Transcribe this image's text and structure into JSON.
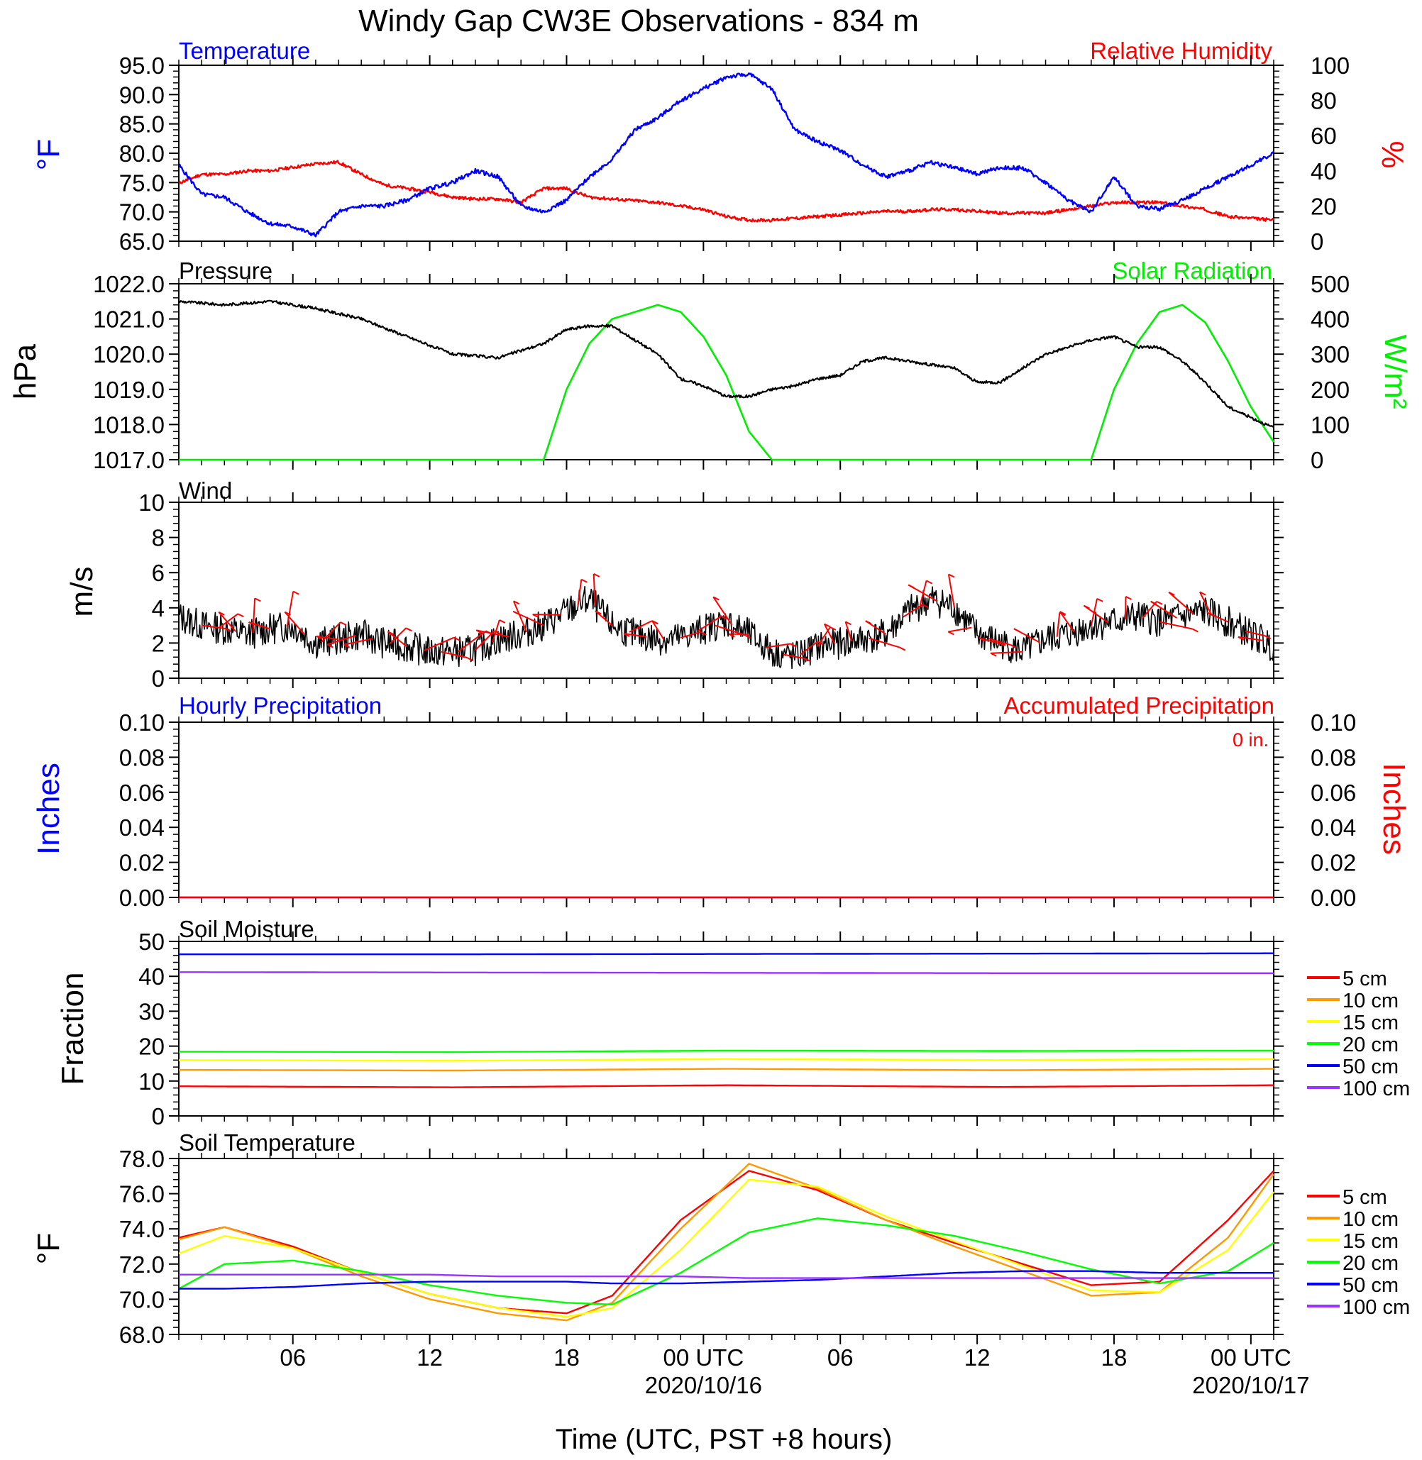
{
  "title": "Windy Gap CW3E Observations - 834 m",
  "x_axis": {
    "label": "Time (UTC, PST +8 hours)",
    "ticks": [
      {
        "hour": 6,
        "label": "06",
        "date": ""
      },
      {
        "hour": 12,
        "label": "12",
        "date": ""
      },
      {
        "hour": 18,
        "label": "18",
        "date": ""
      },
      {
        "hour": 24,
        "label": "00 UTC",
        "date": "2020/10/16"
      },
      {
        "hour": 30,
        "label": "06",
        "date": ""
      },
      {
        "hour": 36,
        "label": "12",
        "date": ""
      },
      {
        "hour": 42,
        "label": "18",
        "date": ""
      },
      {
        "hour": 48,
        "label": "00 UTC",
        "date": "2020/10/17"
      }
    ],
    "range_hours": [
      1,
      49
    ]
  },
  "colors": {
    "temperature": "#0000ff",
    "humidity": "#ff0000",
    "pressure": "#000000",
    "solar": "#00ee00",
    "wind": "#000000",
    "barbs": "#ff0000",
    "d5": "#ff0000",
    "d10": "#ff9900",
    "d15": "#ffff00",
    "d20": "#00ff00",
    "d50": "#0000ff",
    "d100": "#9933ff"
  },
  "panels": {
    "temp": {
      "left_title": "Temperature",
      "right_title": "Relative Humidity",
      "left_unit": "°F",
      "right_unit": "%",
      "left_ticks": [
        "65.0",
        "70.0",
        "75.0",
        "80.0",
        "85.0",
        "90.0",
        "95.0"
      ],
      "right_ticks": [
        "0",
        "20",
        "40",
        "60",
        "80",
        "100"
      ]
    },
    "pressure": {
      "left_title": "Pressure",
      "right_title": "Solar Radiation",
      "left_unit": "hPa",
      "right_unit": "W/m²",
      "left_ticks": [
        "1017.0",
        "1018.0",
        "1019.0",
        "1020.0",
        "1021.0",
        "1022.0"
      ],
      "right_ticks": [
        "0",
        "100",
        "200",
        "300",
        "400",
        "500"
      ]
    },
    "wind": {
      "left_title": "Wind",
      "left_unit": "m/s",
      "left_ticks": [
        "0",
        "2",
        "4",
        "6",
        "8",
        "10"
      ]
    },
    "precip": {
      "left_title": "Hourly Precipitation",
      "right_title": "Accumulated Precipitation",
      "total": "0 in.",
      "left_unit": "Inches",
      "right_unit": "Inches",
      "left_ticks": [
        "0.00",
        "0.02",
        "0.04",
        "0.06",
        "0.08",
        "0.10"
      ],
      "right_ticks": [
        "0.00",
        "0.02",
        "0.04",
        "0.06",
        "0.08",
        "0.10"
      ]
    },
    "soil_moisture": {
      "left_title": "Soil Moisture",
      "left_unit": "Fraction",
      "left_ticks": [
        "0",
        "10",
        "20",
        "30",
        "40",
        "50"
      ],
      "legend": [
        "5 cm",
        "10 cm",
        "15 cm",
        "20 cm",
        "50 cm",
        "100 cm"
      ]
    },
    "soil_temp": {
      "left_title": "Soil Temperature",
      "left_unit": "°F",
      "left_ticks": [
        "68.0",
        "70.0",
        "72.0",
        "74.0",
        "76.0",
        "78.0"
      ],
      "legend": [
        "5 cm",
        "10 cm",
        "15 cm",
        "20 cm",
        "50 cm",
        "100 cm"
      ]
    }
  },
  "chart_data": [
    {
      "type": "line",
      "title": "Temperature / Relative Humidity",
      "xlabel": "Time (UTC)",
      "ylabel": "°F",
      "ylim": [
        65,
        95
      ],
      "y2label": "%",
      "y2lim": [
        0,
        100
      ],
      "x_hours": [
        1,
        2,
        3,
        4,
        5,
        6,
        7,
        8,
        9,
        10,
        11,
        12,
        13,
        14,
        15,
        16,
        17,
        18,
        19,
        20,
        21,
        22,
        23,
        24,
        25,
        26,
        27,
        28,
        29,
        30,
        31,
        32,
        33,
        34,
        35,
        36,
        37,
        38,
        39,
        40,
        41,
        42,
        43,
        44,
        45,
        46,
        47,
        48,
        49
      ],
      "series": [
        {
          "name": "Temperature",
          "axis": "left",
          "color_key": "temperature",
          "values": [
            78,
            73,
            72.5,
            70,
            68,
            67.5,
            66,
            70,
            71,
            71,
            72,
            74,
            75,
            77,
            76,
            71,
            70,
            72,
            76,
            79,
            84,
            86,
            89,
            91,
            93,
            93.5,
            91,
            84,
            82,
            80.5,
            78,
            76,
            77,
            78.5,
            77.5,
            76.5,
            77.5,
            77.5,
            75,
            72,
            70,
            76,
            71,
            70.5,
            72,
            74,
            76,
            78,
            80
          ]
        },
        {
          "name": "Relative Humidity",
          "axis": "right",
          "color_key": "humidity",
          "values": [
            33,
            38,
            38,
            40,
            40,
            42,
            44,
            45,
            38,
            32,
            30,
            28,
            25,
            24,
            24,
            22,
            30,
            30,
            25,
            24,
            23,
            22,
            20,
            18,
            14,
            12,
            12,
            13,
            14,
            15,
            16,
            17,
            17,
            18,
            18,
            17,
            16,
            16,
            16,
            18,
            20,
            22,
            22,
            22,
            20,
            18,
            14,
            13,
            12
          ]
        }
      ]
    },
    {
      "type": "line",
      "title": "Pressure / Solar Radiation",
      "xlabel": "Time (UTC)",
      "ylabel": "hPa",
      "ylim": [
        1017,
        1022
      ],
      "y2label": "W/m²",
      "y2lim": [
        0,
        500
      ],
      "x_hours": [
        1,
        3,
        5,
        7,
        9,
        11,
        13,
        15,
        17,
        18,
        19,
        20,
        22,
        23,
        24,
        25,
        26,
        27,
        28,
        29,
        30,
        31,
        32,
        33,
        35,
        36,
        37,
        38,
        39,
        40,
        41,
        42,
        43,
        44,
        45,
        46,
        47,
        48,
        49
      ],
      "series": [
        {
          "name": "Pressure",
          "axis": "left",
          "color_key": "pressure",
          "values": [
            1021.5,
            1021.4,
            1021.5,
            1021.3,
            1021.0,
            1020.5,
            1020.0,
            1019.9,
            1020.3,
            1020.7,
            1020.8,
            1020.8,
            1020.0,
            1019.3,
            1019.1,
            1018.8,
            1018.8,
            1019.0,
            1019.1,
            1019.3,
            1019.4,
            1019.8,
            1019.9,
            1019.8,
            1019.6,
            1019.2,
            1019.2,
            1019.6,
            1020.0,
            1020.2,
            1020.4,
            1020.5,
            1020.2,
            1020.2,
            1019.8,
            1019.2,
            1018.5,
            1018.2,
            1017.9
          ]
        },
        {
          "name": "Solar Radiation",
          "axis": "right",
          "color_key": "solar",
          "values": [
            0,
            0,
            0,
            0,
            0,
            0,
            0,
            0,
            0,
            200,
            330,
            400,
            440,
            420,
            350,
            240,
            80,
            0,
            0,
            0,
            0,
            0,
            0,
            0,
            0,
            0,
            0,
            0,
            0,
            0,
            0,
            200,
            330,
            420,
            440,
            390,
            280,
            150,
            50
          ]
        }
      ]
    },
    {
      "type": "line",
      "title": "Wind",
      "xlabel": "Time (UTC)",
      "ylabel": "m/s",
      "ylim": [
        0,
        10
      ],
      "x_hours": [
        1,
        2,
        3,
        4,
        5,
        6,
        7,
        8,
        9,
        10,
        11,
        12,
        13,
        14,
        15,
        16,
        17,
        18,
        19,
        20,
        21,
        22,
        23,
        24,
        25,
        26,
        27,
        28,
        29,
        30,
        31,
        32,
        33,
        34,
        35,
        36,
        37,
        38,
        39,
        40,
        41,
        42,
        43,
        44,
        45,
        46,
        47,
        48,
        49
      ],
      "series": [
        {
          "name": "Wind speed",
          "color_key": "wind",
          "values": [
            3.5,
            3.0,
            2.8,
            2.5,
            2.8,
            3.0,
            2.0,
            2.2,
            2.5,
            2.0,
            1.8,
            1.5,
            1.5,
            1.6,
            2.2,
            2.5,
            3.0,
            3.8,
            4.5,
            3.0,
            2.5,
            2.2,
            2.3,
            2.8,
            3.2,
            2.5,
            1.5,
            1.2,
            1.8,
            2.0,
            2.2,
            2.5,
            3.8,
            4.5,
            4.0,
            2.5,
            2.0,
            1.5,
            2.2,
            2.5,
            3.0,
            3.2,
            3.5,
            3.2,
            3.5,
            3.8,
            3.2,
            2.5,
            1.8
          ]
        }
      ]
    },
    {
      "type": "line",
      "title": "Hourly / Accumulated Precipitation",
      "xlabel": "Time (UTC)",
      "ylabel": "Inches",
      "ylim": [
        0,
        0.1
      ],
      "x_hours": [
        1,
        49
      ],
      "series": [
        {
          "name": "Hourly Precipitation",
          "color_key": "temperature",
          "values": [
            0,
            0
          ]
        },
        {
          "name": "Accumulated Precipitation",
          "color_key": "humidity",
          "values": [
            0,
            0
          ]
        }
      ]
    },
    {
      "type": "line",
      "title": "Soil Moisture",
      "xlabel": "Time (UTC)",
      "ylabel": "Fraction",
      "ylim": [
        0,
        50
      ],
      "x_hours": [
        1,
        13,
        25,
        37,
        49
      ],
      "series": [
        {
          "name": "5 cm",
          "color_key": "d5",
          "values": [
            8.5,
            8.2,
            8.8,
            8.3,
            8.8
          ]
        },
        {
          "name": "10 cm",
          "color_key": "d10",
          "values": [
            13.2,
            13.0,
            13.5,
            13.1,
            13.5
          ]
        },
        {
          "name": "15 cm",
          "color_key": "d15",
          "values": [
            16.0,
            15.8,
            16.3,
            16.0,
            16.3
          ]
        },
        {
          "name": "20 cm",
          "color_key": "d20",
          "values": [
            18.4,
            18.3,
            18.7,
            18.6,
            18.7
          ]
        },
        {
          "name": "50 cm",
          "color_key": "d50",
          "values": [
            46.3,
            46.3,
            46.4,
            46.5,
            46.6
          ]
        },
        {
          "name": "100 cm",
          "color_key": "d100",
          "values": [
            41.2,
            41.1,
            41.0,
            40.9,
            40.9
          ]
        }
      ]
    },
    {
      "type": "line",
      "title": "Soil Temperature",
      "xlabel": "Time (UTC)",
      "ylabel": "°F",
      "ylim": [
        68,
        78
      ],
      "x_hours": [
        1,
        3,
        6,
        9,
        12,
        15,
        18,
        20,
        23,
        26,
        29,
        32,
        35,
        38,
        41,
        44,
        47,
        49
      ],
      "series": [
        {
          "name": "5 cm",
          "color_key": "d5",
          "values": [
            73.5,
            74.1,
            73.0,
            71.5,
            70.3,
            69.5,
            69.2,
            70.2,
            74.5,
            77.3,
            76.2,
            74.5,
            73.2,
            72.0,
            70.8,
            71.0,
            74.5,
            77.3
          ]
        },
        {
          "name": "10 cm",
          "color_key": "d10",
          "values": [
            73.4,
            74.1,
            72.9,
            71.3,
            70.0,
            69.2,
            68.8,
            69.8,
            74.0,
            77.7,
            76.3,
            74.5,
            73.0,
            71.6,
            70.2,
            70.4,
            73.5,
            77.1
          ]
        },
        {
          "name": "15 cm",
          "color_key": "d15",
          "values": [
            72.6,
            73.6,
            72.9,
            71.5,
            70.3,
            69.5,
            69.0,
            69.5,
            72.8,
            76.8,
            76.4,
            74.7,
            73.3,
            71.9,
            70.5,
            70.4,
            72.8,
            76.1
          ]
        },
        {
          "name": "20 cm",
          "color_key": "d20",
          "values": [
            70.6,
            72.0,
            72.2,
            71.6,
            70.8,
            70.2,
            69.8,
            69.7,
            71.5,
            73.8,
            74.6,
            74.2,
            73.6,
            72.7,
            71.7,
            70.9,
            71.6,
            73.2
          ]
        },
        {
          "name": "50 cm",
          "color_key": "d50",
          "values": [
            70.6,
            70.6,
            70.7,
            70.9,
            71.0,
            71.0,
            71.0,
            70.9,
            70.9,
            71.0,
            71.1,
            71.3,
            71.5,
            71.6,
            71.6,
            71.5,
            71.5,
            71.5
          ]
        },
        {
          "name": "100 cm",
          "color_key": "d100",
          "values": [
            71.4,
            71.4,
            71.4,
            71.4,
            71.4,
            71.3,
            71.3,
            71.3,
            71.3,
            71.2,
            71.2,
            71.2,
            71.2,
            71.2,
            71.2,
            71.2,
            71.2,
            71.2
          ]
        }
      ]
    }
  ]
}
